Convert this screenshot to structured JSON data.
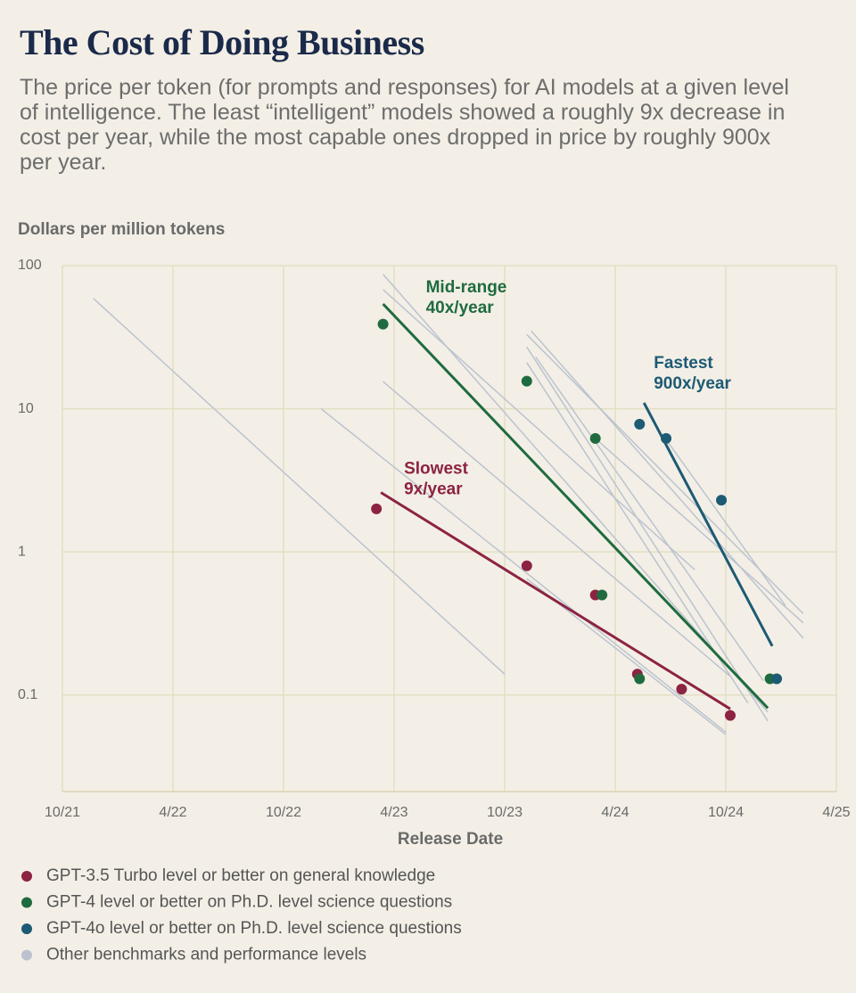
{
  "chart_data": {
    "type": "scatter",
    "title": "The Cost of Doing Business",
    "subtitle": "The price per token (for prompts and responses) for AI models at a given level of intelligence. The least “intelligent” models showed a roughly 9x decrease in cost per year, while the most capable ones dropped in price by roughly 900x per year.",
    "y_label": "Dollars per million tokens",
    "x_label": "Release Date",
    "yscale": "log",
    "grid": true,
    "ylim": [
      0.02,
      100
    ],
    "yticks": [
      0.1,
      1,
      10,
      100
    ],
    "xlim": [
      2021.75,
      2025.25
    ],
    "xticks": [
      {
        "value": 2021.75,
        "label": "10/21"
      },
      {
        "value": 2022.25,
        "label": "4/22"
      },
      {
        "value": 2022.75,
        "label": "10/22"
      },
      {
        "value": 2023.25,
        "label": "4/23"
      },
      {
        "value": 2023.75,
        "label": "10/23"
      },
      {
        "value": 2024.25,
        "label": "4/24"
      },
      {
        "value": 2024.75,
        "label": "10/24"
      },
      {
        "value": 2025.25,
        "label": "4/25"
      }
    ],
    "series": [
      {
        "name": "GPT-3.5 Turbo level or better on general knowledge",
        "color": "#8c2342",
        "x": [
          2023.17,
          2023.85,
          2024.16,
          2024.35,
          2024.55,
          2024.77
        ],
        "values": [
          2.0,
          0.8,
          0.5,
          0.14,
          0.11,
          0.072
        ],
        "trend": {
          "label": [
            "Slowest",
            "9x/year"
          ],
          "x": [
            2023.19,
            2024.77
          ],
          "values": [
            2.6,
            0.08
          ]
        }
      },
      {
        "name": "GPT-4 level or better on Ph.D. level science questions",
        "color": "#1f6b3f",
        "x": [
          2023.2,
          2023.85,
          2024.16,
          2024.19,
          2024.36,
          2024.95
        ],
        "values": [
          39,
          15.6,
          6.2,
          0.5,
          0.13,
          0.13
        ],
        "trend": {
          "label": [
            "Mid-range",
            "40x/year"
          ],
          "x": [
            2023.2,
            2024.94
          ],
          "values": [
            54,
            0.081
          ]
        }
      },
      {
        "name": "GPT-4o level or better on Ph.D. level science questions",
        "color": "#1d5a74",
        "x": [
          2024.36,
          2024.48,
          2024.73,
          2024.98
        ],
        "values": [
          7.8,
          6.2,
          2.3,
          0.13
        ],
        "trend": {
          "label": [
            "Fastest",
            "900x/year"
          ],
          "x": [
            2024.38,
            2024.96
          ],
          "values": [
            11,
            0.22
          ]
        }
      },
      {
        "name": "Other benchmarks and performance levels",
        "color": "#bcc3cf",
        "lines": [
          {
            "x": [
              2021.89,
              2023.75
            ],
            "values": [
              59,
              0.14
            ]
          },
          {
            "x": [
              2022.92,
              2024.75
            ],
            "values": [
              10,
              0.055
            ]
          },
          {
            "x": [
              2023.2,
              2024.94
            ],
            "values": [
              87,
              0.076
            ]
          },
          {
            "x": [
              2023.2,
              2024.61
            ],
            "values": [
              68,
              0.75
            ]
          },
          {
            "x": [
              2023.2,
              2024.77
            ],
            "values": [
              15.5,
              0.135
            ]
          },
          {
            "x": [
              2023.85,
              2025.1
            ],
            "values": [
              33,
              0.37
            ]
          },
          {
            "x": [
              2023.87,
              2025.1
            ],
            "values": [
              35,
              0.25
            ]
          },
          {
            "x": [
              2023.85,
              2024.94
            ],
            "values": [
              27,
              0.066
            ]
          },
          {
            "x": [
              2023.85,
              2024.85
            ],
            "values": [
              21,
              0.088
            ]
          },
          {
            "x": [
              2023.89,
              2024.92
            ],
            "values": [
              23,
              0.126
            ]
          },
          {
            "x": [
              2024.15,
              2025.1
            ],
            "values": [
              6.4,
              0.32
            ]
          },
          {
            "x": [
              2024.47,
              2025.02
            ],
            "values": [
              6.4,
              0.42
            ]
          },
          {
            "x": [
              2023.85,
              2024.75
            ],
            "values": [
              0.65,
              0.053
            ]
          }
        ]
      }
    ]
  }
}
